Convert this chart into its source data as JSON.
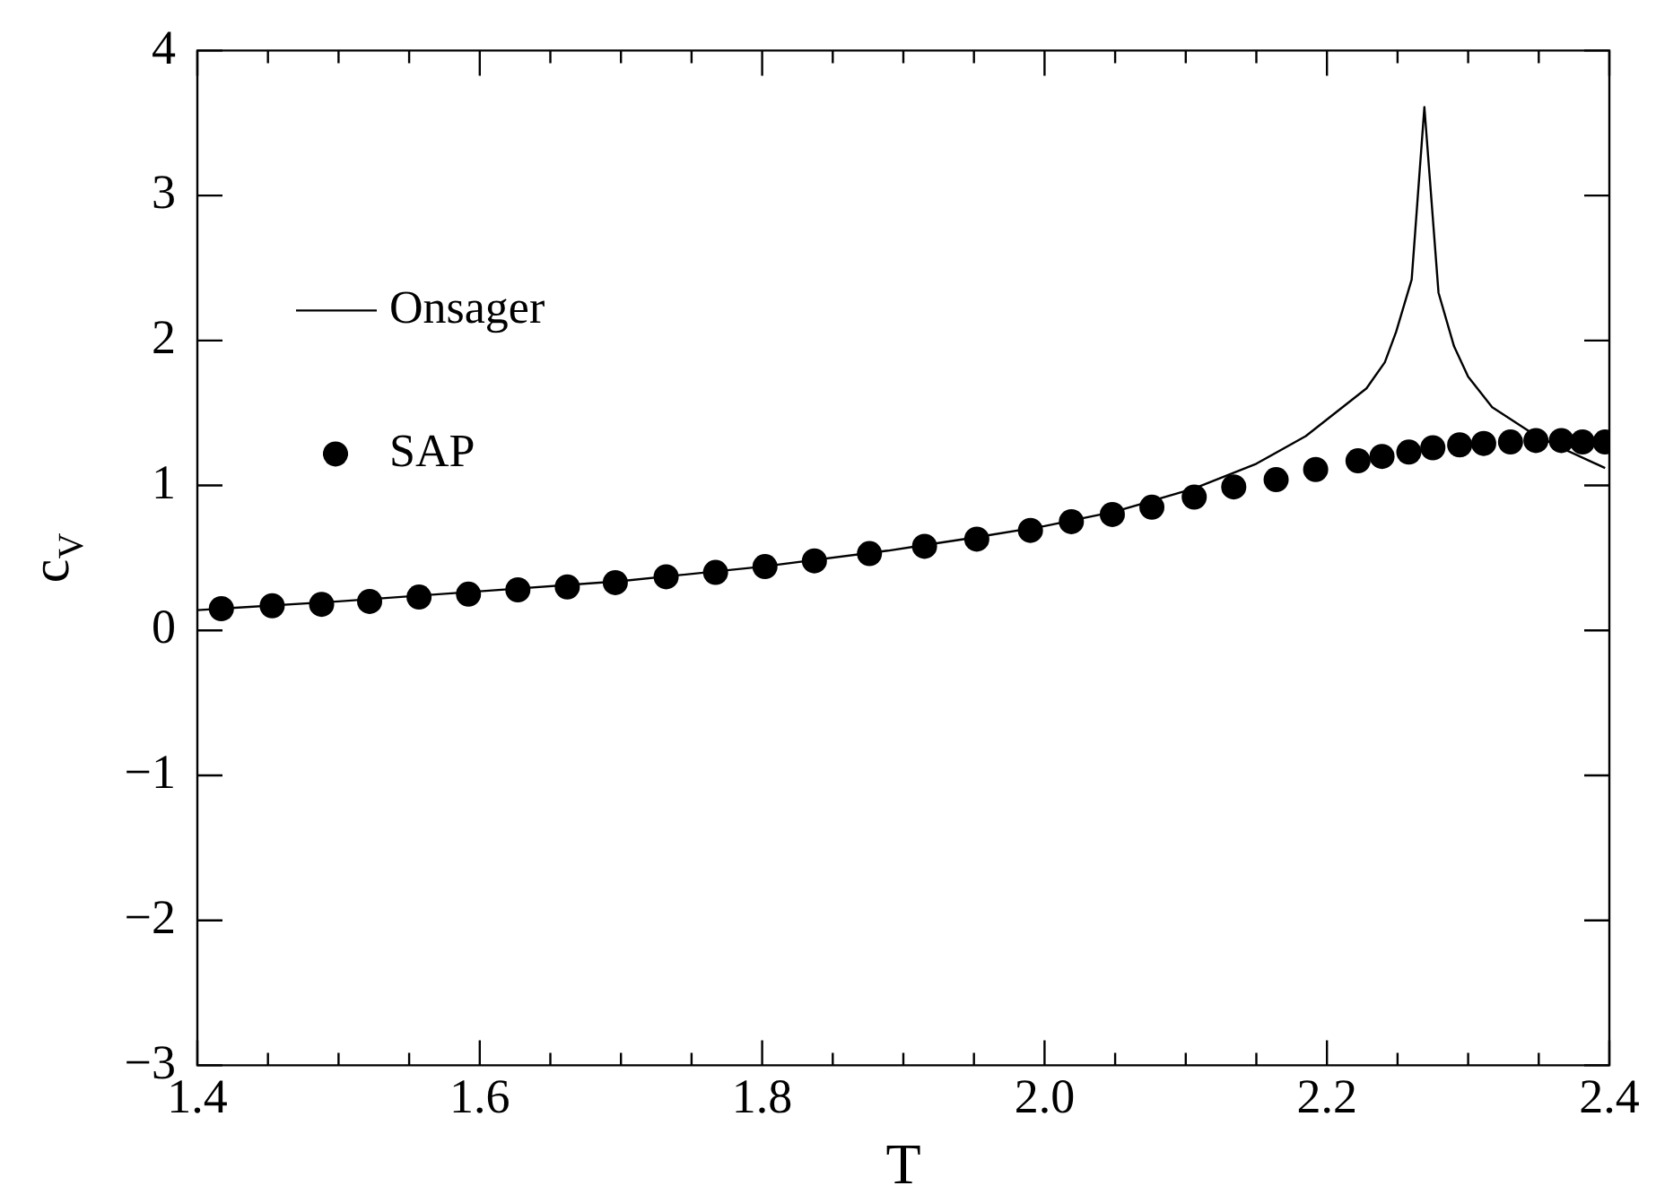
{
  "chart_data": {
    "type": "scatter",
    "xlabel": "T",
    "ylabel": "c$_{V}$",
    "xlim": [
      1.4,
      2.4
    ],
    "xticks": [
      {
        "value": 1.4,
        "label": "1.4"
      },
      {
        "value": 1.6,
        "label": "1.6"
      },
      {
        "value": 1.8,
        "label": "1.8"
      },
      {
        "value": 2.0,
        "label": "2.0"
      },
      {
        "value": 2.2,
        "label": "2.2"
      },
      {
        "value": 2.4,
        "label": "2.4"
      }
    ],
    "ylim": [
      -3,
      4
    ],
    "yticks": [
      -3,
      -2,
      -1,
      0,
      1,
      2,
      3,
      4
    ],
    "grid": false,
    "legend": "top left",
    "series": [
      {
        "name": "Onsager",
        "type": "line",
        "color": "#000000",
        "marker": "none",
        "x": [
          1.4,
          1.5,
          1.6,
          1.7,
          1.8,
          1.889,
          1.95,
          2.0,
          2.05,
          2.106,
          2.15,
          2.185,
          2.228,
          2.241,
          2.249,
          2.26,
          2.269,
          2.279,
          2.29,
          2.3,
          2.317,
          2.347,
          2.368,
          2.397
        ],
        "values": [
          0.14,
          0.2,
          0.27,
          0.34,
          0.44,
          0.55,
          0.64,
          0.72,
          0.82,
          0.98,
          1.15,
          1.34,
          1.67,
          1.85,
          2.06,
          2.42,
          3.61,
          2.33,
          1.96,
          1.75,
          1.54,
          1.35,
          1.25,
          1.12
        ]
      },
      {
        "name": "SAP",
        "type": "scatter",
        "color": "#000000",
        "marker": "circle",
        "x": [
          1.417,
          1.453,
          1.488,
          1.522,
          1.557,
          1.592,
          1.627,
          1.662,
          1.696,
          1.732,
          1.767,
          1.802,
          1.837,
          1.876,
          1.915,
          1.952,
          1.99,
          2.019,
          2.048,
          2.076,
          2.106,
          2.134,
          2.164,
          2.192,
          2.222,
          2.239,
          2.258,
          2.275,
          2.294,
          2.311,
          2.33,
          2.348,
          2.366,
          2.381,
          2.397
        ],
        "values": [
          0.15,
          0.17,
          0.18,
          0.2,
          0.23,
          0.25,
          0.28,
          0.3,
          0.33,
          0.37,
          0.4,
          0.44,
          0.48,
          0.53,
          0.58,
          0.63,
          0.69,
          0.75,
          0.8,
          0.85,
          0.92,
          0.99,
          1.04,
          1.11,
          1.17,
          1.2,
          1.23,
          1.26,
          1.28,
          1.29,
          1.3,
          1.31,
          1.31,
          1.3,
          1.3
        ]
      }
    ]
  }
}
